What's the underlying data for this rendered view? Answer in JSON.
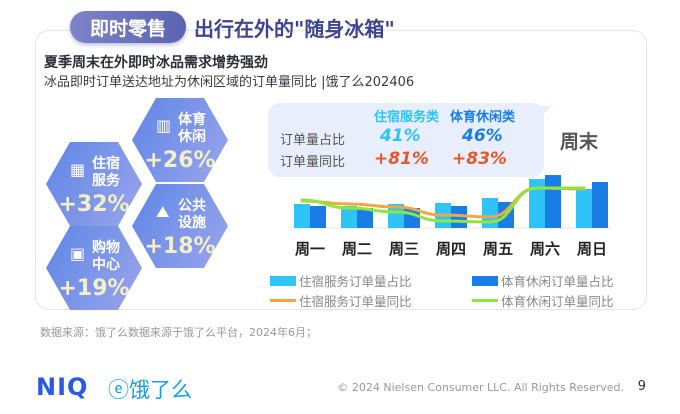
{
  "header": {
    "tag": "即时零售",
    "title": "出行在外的\"随身冰箱\""
  },
  "subtitle": "夏季周末在外即时冰品需求增势强劲",
  "description": "冰品即时订单送达地址为休闲区域的订单量同比 |饿了么202406",
  "hexagons": [
    {
      "label1": "体育",
      "label2": "休闲",
      "value": "+26%",
      "icon": "stadium-icon"
    },
    {
      "label1": "住宿",
      "label2": "服务",
      "value": "+32%",
      "icon": "hotel-icon"
    },
    {
      "label1": "公共",
      "label2": "设施",
      "value": "+18%",
      "icon": "park-icon"
    },
    {
      "label1": "购物",
      "label2": "中心",
      "value": "+19%",
      "icon": "mall-icon"
    }
  ],
  "callout": {
    "col1": "住宿服务类",
    "col2": "体育休闲类",
    "row1": "订单量占比",
    "row2": "订单量同比",
    "share1": "41%",
    "share2": "46%",
    "yoy1": "+81%",
    "yoy2": "+83%",
    "weekend": "周末"
  },
  "colors": {
    "light_bar": "#2ec4f7",
    "dark_bar": "#1a7de6",
    "orange": "#f0a845",
    "green": "#8ee63e",
    "accent_red": "#e8572a"
  },
  "chart_data": {
    "type": "bar",
    "categories": [
      "周一",
      "周二",
      "周三",
      "周四",
      "周五",
      "周六",
      "周日"
    ],
    "series": [
      {
        "name": "住宿服务订单量占比",
        "kind": "bar",
        "values": [
          24,
          22,
          24,
          25,
          30,
          49,
          39
        ]
      },
      {
        "name": "体育休闲订单量占比",
        "kind": "bar",
        "values": [
          22,
          20,
          20,
          22,
          26,
          53,
          46
        ]
      },
      {
        "name": "住宿服务订单量同比",
        "kind": "line",
        "values": [
          27,
          24,
          21,
          13,
          11,
          40,
          39
        ]
      },
      {
        "name": "体育休闲订单量同比",
        "kind": "line",
        "values": [
          28,
          20,
          16,
          7,
          6,
          40,
          40
        ]
      }
    ],
    "ylim": [
      0,
      60
    ],
    "grid": false,
    "legend": "bottom"
  },
  "footer": {
    "source": "数据来源：饿了么数据来源于饿了么平台，2024年6月；",
    "logo1": "NIQ",
    "logo2": "饿了么",
    "copyright": "© 2024 Nielsen Consumer LLC. All Rights Reserved.",
    "page": "9"
  }
}
